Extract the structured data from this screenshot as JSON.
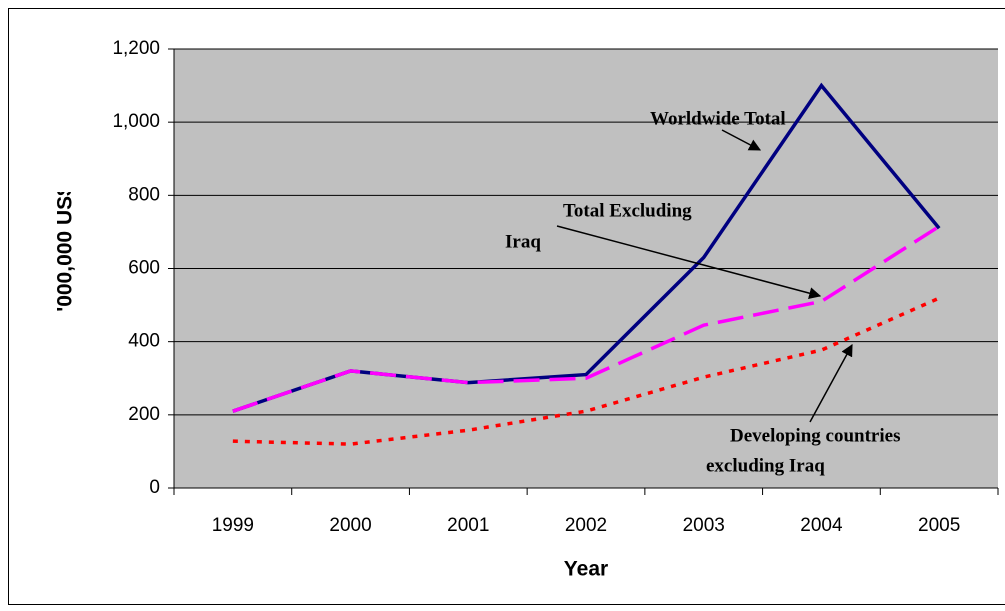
{
  "chart_data": {
    "type": "line",
    "x_label": "Year",
    "y_label": "'000,000 US$",
    "categories": [
      "1999",
      "2000",
      "2001",
      "2002",
      "2003",
      "2004",
      "2005"
    ],
    "series": [
      {
        "color": "#000080",
        "style": "solid",
        "values": [
          210,
          320,
          288,
          310,
          630,
          1100,
          710
        ]
      },
      {
        "color": "#ff00ff",
        "style": "dashed",
        "values": [
          210,
          320,
          288,
          300,
          445,
          510,
          715
        ]
      },
      {
        "color": "#ff0000",
        "style": "dotted",
        "values": [
          128,
          120,
          158,
          210,
          303,
          377,
          519
        ]
      }
    ],
    "annotations": [
      {
        "lines": [
          "Worldwide  Total"
        ]
      },
      {
        "lines": [
          "Total Excluding",
          "Iraq"
        ]
      },
      {
        "lines": [
          "Developing countries",
          "excluding Iraq"
        ]
      }
    ],
    "ylim": [
      0,
      1200
    ],
    "yticks": [
      0,
      200,
      400,
      600,
      800,
      {
        "value": 1000,
        "label": "1,000"
      },
      {
        "value": 1200,
        "label": "1,200"
      }
    ],
    "grid": true,
    "plot_background": "#c0c0c0"
  }
}
